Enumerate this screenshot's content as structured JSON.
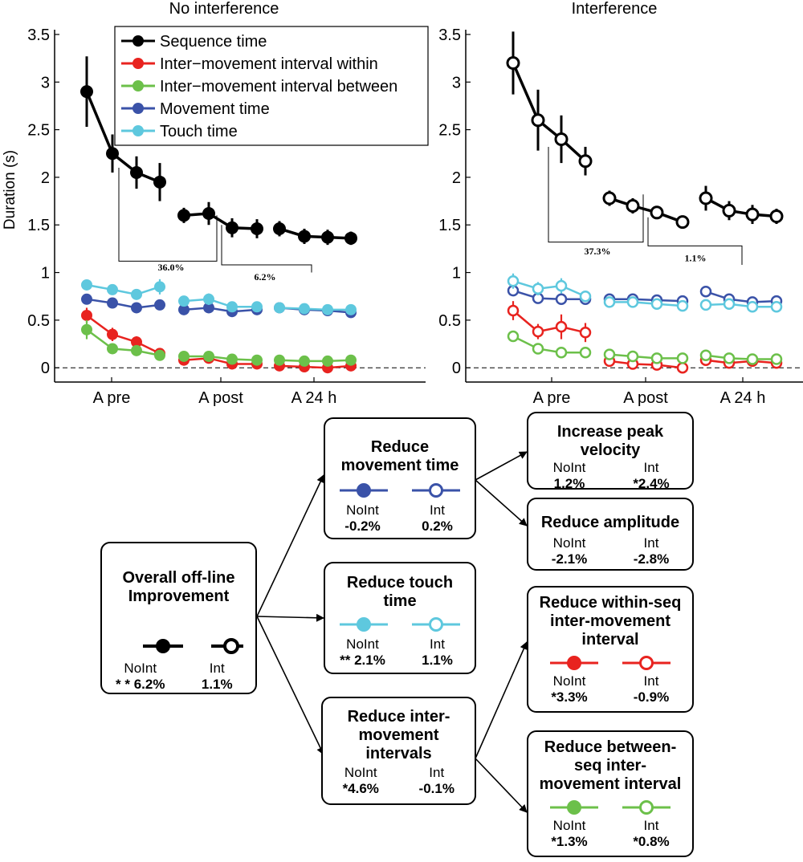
{
  "colors": {
    "sequence": "#000000",
    "within": "#e8231f",
    "between": "#6cc04a",
    "movement": "#3a52a8",
    "touch": "#5ec8de"
  },
  "chart_data": [
    {
      "type": "line",
      "title": "No interference",
      "ylabel": "Duration (s)",
      "ylim": [
        -0.15,
        3.55
      ],
      "yticks": [
        0,
        0.5,
        1,
        1.5,
        2,
        2.5,
        3,
        3.5
      ],
      "ytick_labels": [
        "0",
        "0.5",
        "1",
        "1.5",
        "2",
        "2.5",
        "3",
        "3.5"
      ],
      "filled": true,
      "x_groups": [
        "A pre",
        "A post",
        "A 24 h"
      ],
      "legend": [
        "Sequence time",
        "Inter−movement interval within",
        "Inter−movement interval between",
        "Movement time",
        "Touch time"
      ],
      "series": [
        {
          "name": "Sequence time",
          "key": "sequence",
          "groups": [
            [
              2.9,
              2.25,
              2.05,
              1.95
            ],
            [
              1.6,
              1.62,
              1.47,
              1.46
            ],
            [
              1.46,
              1.38,
              1.37,
              1.36
            ]
          ],
          "err": [
            [
              0.37,
              0.2,
              0.17,
              0.2
            ],
            [
              0.08,
              0.12,
              0.1,
              0.1
            ],
            [
              0.08,
              0.08,
              0.08,
              0.07
            ]
          ]
        },
        {
          "name": "Inter−movement interval within",
          "key": "within",
          "groups": [
            [
              0.55,
              0.35,
              0.27,
              0.15
            ],
            [
              0.08,
              0.1,
              0.04,
              0.04
            ],
            [
              0.02,
              0.01,
              0.0,
              0.02
            ]
          ],
          "err": [
            [
              0.08,
              0.07,
              0.06,
              0.05
            ],
            [
              0.04,
              0.05,
              0.03,
              0.03
            ],
            [
              0.03,
              0.03,
              0.03,
              0.03
            ]
          ]
        },
        {
          "name": "Inter−movement interval between",
          "key": "between",
          "groups": [
            [
              0.4,
              0.2,
              0.18,
              0.13
            ],
            [
              0.12,
              0.12,
              0.09,
              0.08
            ],
            [
              0.08,
              0.07,
              0.07,
              0.08
            ]
          ],
          "err": [
            [
              0.1,
              0.04,
              0.04,
              0.03
            ],
            [
              0.03,
              0.03,
              0.03,
              0.03
            ],
            [
              0.02,
              0.02,
              0.02,
              0.02
            ]
          ]
        },
        {
          "name": "Movement time",
          "key": "movement",
          "groups": [
            [
              0.72,
              0.68,
              0.63,
              0.66
            ],
            [
              0.61,
              0.63,
              0.59,
              0.61
            ],
            [
              0.63,
              0.61,
              0.6,
              0.58
            ]
          ],
          "err": [
            [
              0.04,
              0.04,
              0.04,
              0.04
            ],
            [
              0.03,
              0.03,
              0.03,
              0.03
            ],
            [
              0.03,
              0.03,
              0.03,
              0.03
            ]
          ]
        },
        {
          "name": "Touch time",
          "key": "touch",
          "groups": [
            [
              0.87,
              0.82,
              0.77,
              0.85
            ],
            [
              0.7,
              0.72,
              0.64,
              0.64
            ],
            [
              0.63,
              0.62,
              0.61,
              0.61
            ]
          ],
          "err": [
            [
              0.05,
              0.04,
              0.05,
              0.08
            ],
            [
              0.04,
              0.06,
              0.04,
              0.04
            ],
            [
              0.03,
              0.03,
              0.03,
              0.03
            ]
          ]
        }
      ],
      "annotations": [
        "36.0%",
        "6.2%"
      ]
    },
    {
      "type": "line",
      "title": "Interference",
      "ylim": [
        -0.15,
        3.55
      ],
      "yticks": [
        0,
        0.5,
        1,
        1.5,
        2,
        2.5,
        3,
        3.5
      ],
      "ytick_labels": [
        "0",
        "0.5",
        "1",
        "1.5",
        "2",
        "2.5",
        "3",
        "3.5"
      ],
      "filled": false,
      "x_groups": [
        "A pre",
        "A post",
        "A 24 h"
      ],
      "series": [
        {
          "name": "Sequence time",
          "key": "sequence",
          "groups": [
            [
              3.2,
              2.6,
              2.4,
              2.17
            ],
            [
              1.78,
              1.7,
              1.63,
              1.53
            ],
            [
              1.78,
              1.65,
              1.61,
              1.59
            ]
          ],
          "err": [
            [
              0.33,
              0.32,
              0.25,
              0.15
            ],
            [
              0.08,
              0.08,
              0.07,
              0.06
            ],
            [
              0.13,
              0.1,
              0.1,
              0.08
            ]
          ]
        },
        {
          "name": "Inter−movement interval within",
          "key": "within",
          "groups": [
            [
              0.6,
              0.38,
              0.43,
              0.37
            ],
            [
              0.07,
              0.04,
              0.03,
              0.0
            ],
            [
              0.08,
              0.05,
              0.07,
              0.05
            ]
          ],
          "err": [
            [
              0.1,
              0.08,
              0.13,
              0.1
            ],
            [
              0.03,
              0.03,
              0.03,
              0.03
            ],
            [
              0.03,
              0.03,
              0.03,
              0.03
            ]
          ]
        },
        {
          "name": "Inter−movement interval between",
          "key": "between",
          "groups": [
            [
              0.33,
              0.2,
              0.16,
              0.16
            ],
            [
              0.14,
              0.12,
              0.1,
              0.1
            ],
            [
              0.13,
              0.1,
              0.09,
              0.09
            ]
          ],
          "err": [
            [
              0.04,
              0.03,
              0.03,
              0.03
            ],
            [
              0.02,
              0.02,
              0.02,
              0.02
            ],
            [
              0.02,
              0.02,
              0.02,
              0.02
            ]
          ]
        },
        {
          "name": "Movement time",
          "key": "movement",
          "groups": [
            [
              0.81,
              0.73,
              0.72,
              0.72
            ],
            [
              0.72,
              0.72,
              0.71,
              0.7
            ],
            [
              0.8,
              0.72,
              0.69,
              0.7
            ]
          ],
          "err": [
            [
              0.04,
              0.04,
              0.04,
              0.04
            ],
            [
              0.03,
              0.03,
              0.03,
              0.03
            ],
            [
              0.03,
              0.03,
              0.03,
              0.03
            ]
          ]
        },
        {
          "name": "Touch time",
          "key": "touch",
          "groups": [
            [
              0.91,
              0.83,
              0.86,
              0.75
            ],
            [
              0.69,
              0.69,
              0.67,
              0.65
            ],
            [
              0.66,
              0.67,
              0.64,
              0.64
            ]
          ],
          "err": [
            [
              0.08,
              0.07,
              0.08,
              0.06
            ],
            [
              0.03,
              0.03,
              0.03,
              0.03
            ],
            [
              0.03,
              0.03,
              0.03,
              0.03
            ]
          ]
        }
      ],
      "annotations": [
        "37.3%",
        "1.1%"
      ]
    }
  ],
  "diagram": {
    "overall": {
      "title_line1": "Overall off-line",
      "title_line2": "Improvement",
      "noint_label": "NoInt",
      "int_label": "Int",
      "noint_value": "* * 6.2%",
      "int_value": "1.1%"
    },
    "movement_time": {
      "title_line1": "Reduce",
      "title_line2": "movement time",
      "noint_label": "NoInt",
      "int_label": "Int",
      "noint_value": "-0.2%",
      "int_value": "0.2%"
    },
    "touch_time": {
      "title_line1": "Reduce touch",
      "title_line2": "time",
      "noint_label": "NoInt",
      "int_label": "Int",
      "noint_value": "** 2.1%",
      "int_value": "1.1%"
    },
    "imi": {
      "title_line1": "Reduce inter-",
      "title_line2": "movement",
      "title_line3": "intervals",
      "noint_label": "NoInt",
      "int_label": "Int",
      "noint_value": "*4.6%",
      "int_value": "-0.1%"
    },
    "peak_velocity": {
      "title_line1": "Increase peak",
      "title_line2": "velocity",
      "noint_label": "NoInt",
      "int_label": "Int",
      "noint_value": "1.2%",
      "int_value": "*2.4%"
    },
    "amplitude": {
      "title_line1": "Reduce amplitude",
      "noint_label": "NoInt",
      "int_label": "Int",
      "noint_value": "-2.1%",
      "int_value": "-2.8%"
    },
    "within_seq": {
      "title_line1": "Reduce within-seq",
      "title_line2": "inter-movement",
      "title_line3": "interval",
      "noint_label": "NoInt",
      "int_label": "Int",
      "noint_value": "*3.3%",
      "int_value": "-0.9%"
    },
    "between_seq": {
      "title_line1": "Reduce between-",
      "title_line2": "seq inter-",
      "title_line3": "movement interval",
      "noint_label": "NoInt",
      "int_label": "Int",
      "noint_value": "*1.3%",
      "int_value": "*0.8%"
    }
  }
}
